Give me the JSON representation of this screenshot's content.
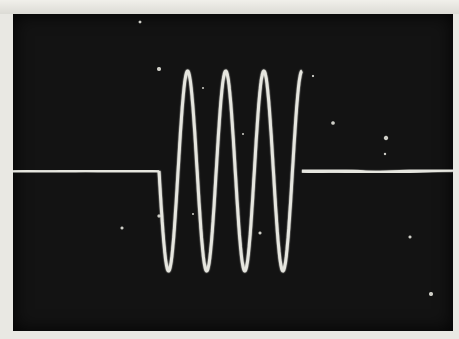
{
  "scene": {
    "subject": "oscilloscope-trace",
    "colors": {
      "background": "#131313",
      "trace": "#e6e6df",
      "frame": "#e9e8e3",
      "speck": "#cfcfc8"
    }
  }
}
